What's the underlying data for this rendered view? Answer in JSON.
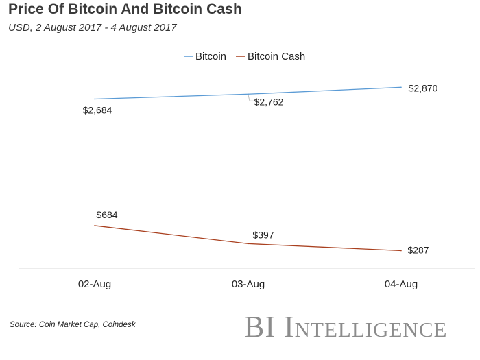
{
  "header": {
    "title": "Price Of Bitcoin And Bitcoin Cash",
    "subtitle": "USD, 2 August 2017 - 4 August 2017"
  },
  "footer": {
    "source": "Source: Coin Market Cap, Coindesk",
    "brand": "BI Intelligence"
  },
  "chart_data": {
    "type": "line",
    "title": "Price Of Bitcoin And Bitcoin Cash",
    "subtitle": "USD, 2 August 2017 - 4 August 2017",
    "categories": [
      "02-Aug",
      "03-Aug",
      "04-Aug"
    ],
    "series": [
      {
        "name": "Bitcoin",
        "color": "#5b9bd5",
        "values": [
          2684,
          2762,
          2870
        ],
        "labels": [
          "$2,684",
          "$2,762",
          "$2,870"
        ]
      },
      {
        "name": "Bitcoin Cash",
        "color": "#a9401f",
        "values": [
          684,
          397,
          287
        ],
        "labels": [
          "$684",
          "$397",
          "$287"
        ]
      }
    ],
    "ylim": [
      0,
      3600
    ],
    "legend": "top-center",
    "grid": false
  }
}
